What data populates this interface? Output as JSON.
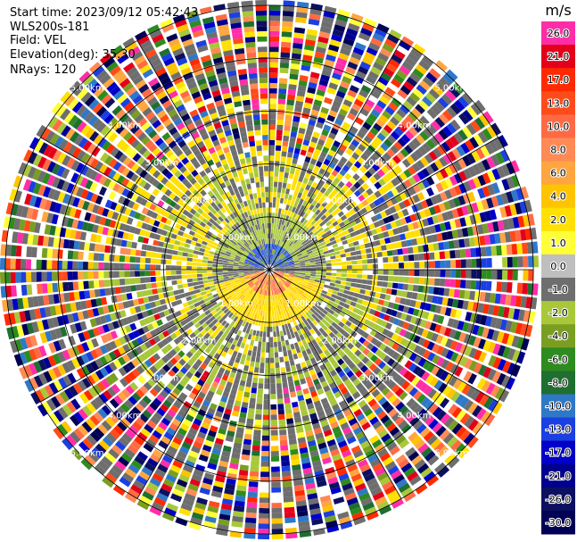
{
  "header": {
    "start_time": "Start time: 2023/09/12 05:42:43",
    "instrument": "WLS200s-181",
    "field": "Field: VEL",
    "elevation": "Elevation(deg): 35.30",
    "nrays": "NRays: 120"
  },
  "colorbar": {
    "unit": "m/s",
    "ticks": [
      "26.0",
      "21.0",
      "17.0",
      "13.0",
      "10.0",
      "8.0",
      "6.0",
      "4.0",
      "2.0",
      "1.0",
      "0.0",
      "-1.0",
      "-2.0",
      "-4.0",
      "-6.0",
      "-8.0",
      "-10.0",
      "-13.0",
      "-17.0",
      "-21.0",
      "-26.0",
      "-30.0"
    ],
    "colors": [
      "#ff2ea8",
      "#e3001a",
      "#ff2a00",
      "#ff4b1a",
      "#ff6a45",
      "#ff8a55",
      "#ffa640",
      "#ffc400",
      "#ffe000",
      "#ffff38",
      "#bfbfbf",
      "#6e6e6e",
      "#a8c83a",
      "#7a9e22",
      "#2e8b1f",
      "#1f6f30",
      "#2f78c8",
      "#1b3fe0",
      "#0000c8",
      "#00008e",
      "#0d1060",
      "#000055"
    ]
  },
  "chart_data": {
    "type": "heatmap",
    "title": "",
    "projection": "polar (PPI)",
    "field": "VEL",
    "units": "m/s",
    "nrays": 120,
    "elevation_deg": 35.3,
    "range_ring_labels": [
      "1.00km",
      "2.00km",
      "3.00km",
      "4.00km",
      "5.00km"
    ],
    "range_rings_km": [
      1,
      2,
      3,
      4,
      5
    ],
    "color_scale": [
      -30.0,
      -26.0,
      -21.0,
      -17.0,
      -13.0,
      -10.0,
      -8.0,
      -6.0,
      -4.0,
      -2.0,
      -1.0,
      0.0,
      1.0,
      2.0,
      4.0,
      6.0,
      8.0,
      10.0,
      13.0,
      17.0,
      21.0,
      26.0
    ],
    "max_range_km": 5.1,
    "grid": true
  }
}
